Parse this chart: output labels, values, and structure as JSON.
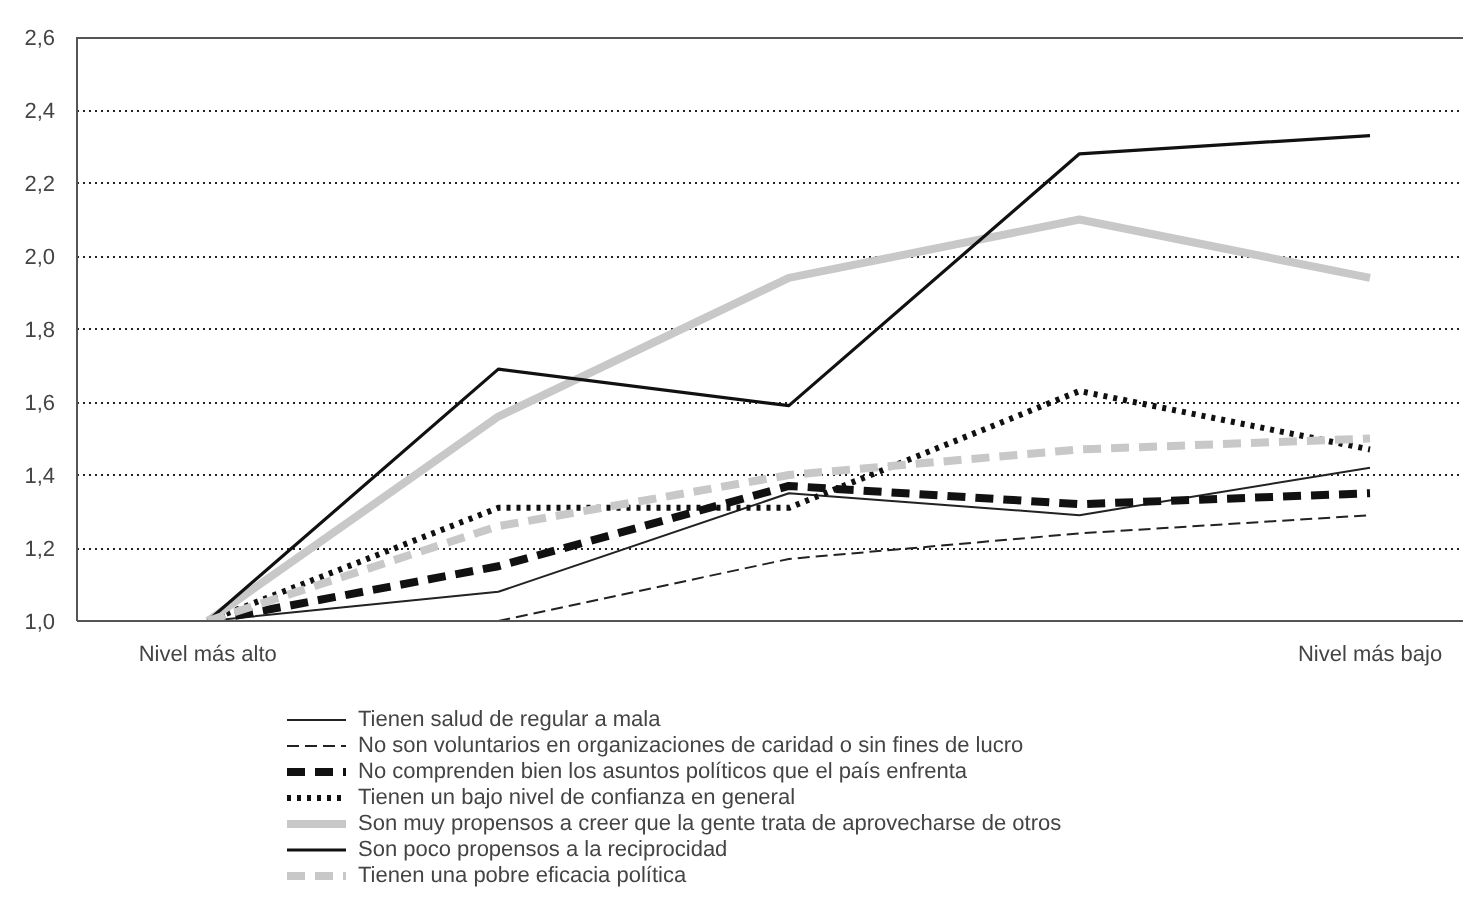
{
  "chart_data": {
    "type": "line",
    "categories": [
      "Nivel más alto",
      null,
      null,
      null,
      "Nivel más bajo"
    ],
    "ylim": [
      1.0,
      2.6
    ],
    "yticks": [
      {
        "value": 1.0,
        "label": "1,0"
      },
      {
        "value": 1.2,
        "label": "1,2"
      },
      {
        "value": 1.4,
        "label": "1,4"
      },
      {
        "value": 1.6,
        "label": "1,6"
      },
      {
        "value": 1.8,
        "label": "1,8"
      },
      {
        "value": 2.0,
        "label": "2,0"
      },
      {
        "value": 2.2,
        "label": "2,2"
      },
      {
        "value": 2.4,
        "label": "2,4"
      },
      {
        "value": 2.6,
        "label": "2,6"
      }
    ],
    "grid": "y",
    "legend": "bottom",
    "series": [
      {
        "name": "Tienen salud de regular a mala",
        "color": "#222222",
        "line_style": "solid",
        "values": [
          1.0,
          1.08,
          1.35,
          1.29,
          1.42
        ]
      },
      {
        "name": "No son voluntarios en organizaciones de caridad o sin fines de lucro",
        "color": "#222222",
        "line_style": "dashed",
        "values": [
          null,
          1.0,
          1.17,
          1.24,
          1.29
        ]
      },
      {
        "name": "No comprenden bien los asuntos políticos que el país enfrenta",
        "color": "#111111",
        "line_style": "dashed",
        "values": [
          1.0,
          1.15,
          1.37,
          1.32,
          1.35
        ]
      },
      {
        "name": "Tienen un bajo nivel de confianza en general",
        "color": "#111111",
        "line_style": "dotted",
        "values": [
          1.0,
          1.31,
          1.31,
          1.63,
          1.47
        ]
      },
      {
        "name": "Son muy propensos a creer que la gente trata de aprovecharse de otros",
        "color": "#c8c8c8",
        "line_style": "solid",
        "values": [
          1.0,
          1.56,
          1.94,
          2.1,
          1.94
        ]
      },
      {
        "name": "Son poco propensos a la reciprocidad",
        "color": "#111111",
        "line_style": "solid",
        "values": [
          1.0,
          1.69,
          1.59,
          2.28,
          2.33
        ]
      },
      {
        "name": "Tienen una pobre eficacia política",
        "color": "#c8c8c8",
        "line_style": "dashed",
        "values": [
          1.0,
          1.26,
          1.4,
          1.47,
          1.5
        ]
      }
    ]
  }
}
